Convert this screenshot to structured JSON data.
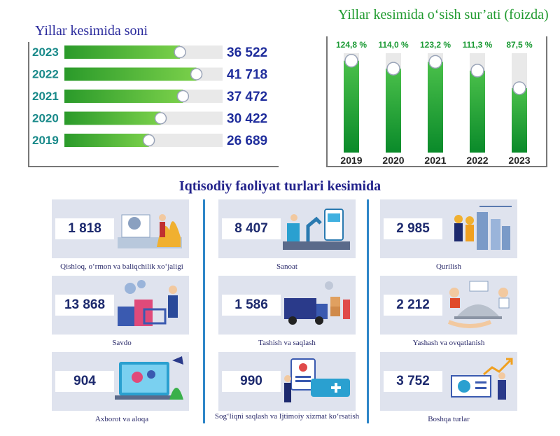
{
  "left_panel": {
    "title": "Yillar kesimida soni"
  },
  "right_panel": {
    "title": "Yillar kesimida o‘sish sur’ati (foizda)"
  },
  "section": {
    "title": "Iqtisodiy faoliyat turlari kesimida"
  },
  "chart_data": [
    {
      "type": "bar",
      "orientation": "horizontal",
      "title": "Yillar kesimida soni",
      "categories": [
        "2023",
        "2022",
        "2021",
        "2020",
        "2019"
      ],
      "values": [
        36522,
        41718,
        37472,
        30422,
        26689
      ],
      "value_labels": [
        "36 522",
        "41 718",
        "37 472",
        "30 422",
        "26 689"
      ],
      "xlim": [
        0,
        50000
      ],
      "grid": false,
      "colors": {
        "bar": "#3fb53f",
        "track": "#e9e9e9",
        "category": "#1a8a8a",
        "value": "#1f2d9c"
      }
    },
    {
      "type": "bar",
      "orientation": "vertical",
      "title": "Yillar kesimida o‘sish sur’ati (foizda)",
      "categories": [
        "2019",
        "2020",
        "2021",
        "2022",
        "2023"
      ],
      "values": [
        124.8,
        114.0,
        123.2,
        111.3,
        87.5
      ],
      "value_labels": [
        "124,8 %",
        "114,0 %",
        "123,2 %",
        "111,3 %",
        "87,5 %"
      ],
      "ylim": [
        0,
        135
      ],
      "grid": false,
      "colors": {
        "bar": "#1a9a34",
        "track": "#e9e9e9",
        "label": "#1a9a34",
        "category": "#222222"
      }
    }
  ],
  "sectors": [
    {
      "value": "1 818",
      "label": "Qishloq, o‘rmon va baliqchilik xo‘jaligi",
      "icon": "agriculture-illustration"
    },
    {
      "value": "8 407",
      "label": "Sanoat",
      "icon": "industry-illustration"
    },
    {
      "value": "2 985",
      "label": "Qurilish",
      "icon": "construction-illustration"
    },
    {
      "value": "13 868",
      "label": "Savdo",
      "icon": "trade-illustration"
    },
    {
      "value": "1 586",
      "label": "Tashish va saqlash",
      "icon": "transport-illustration"
    },
    {
      "value": "2 212",
      "label": "Yashash va ovqatlanish",
      "icon": "hospitality-illustration"
    },
    {
      "value": "904",
      "label": "Axborot va aloqa",
      "icon": "ict-illustration"
    },
    {
      "value": "990",
      "label": "Sog‘liqni saqlash va Ijtimoiy xizmat ko‘rsatish",
      "icon": "health-illustration"
    },
    {
      "value": "3 752",
      "label": "Boshqa turlar",
      "icon": "other-illustration"
    }
  ]
}
